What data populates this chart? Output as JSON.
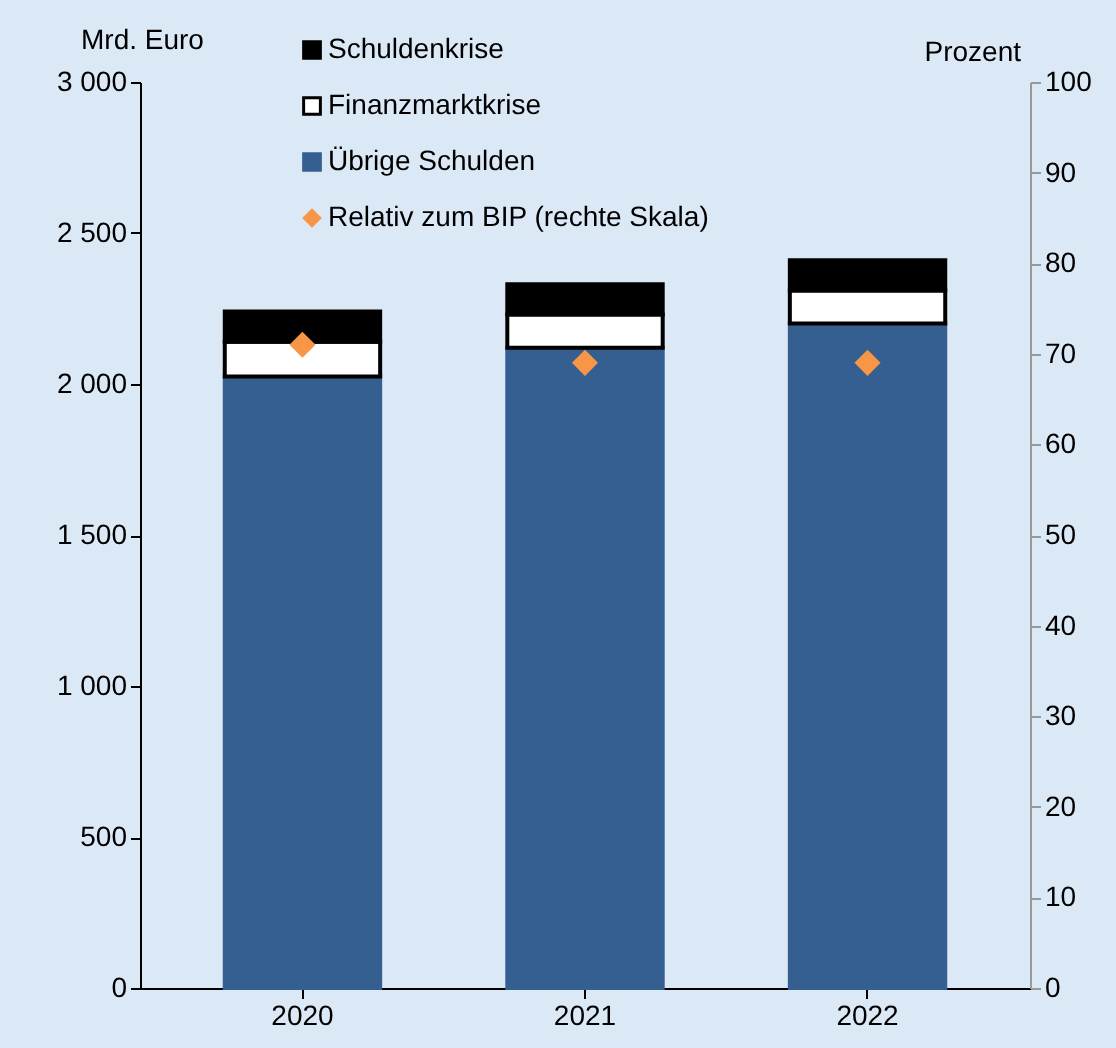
{
  "chart_data": {
    "type": "bar",
    "stacked": true,
    "xlabel": null,
    "ylabel": "Mrd. Euro",
    "y2label": "Prozent",
    "categories": [
      "2020",
      "2021",
      "2022"
    ],
    "series": [
      {
        "name": "Übrige Schulden",
        "color": "#355f91",
        "values": [
          2025,
          2120,
          2200
        ]
      },
      {
        "name": "Finanzmarktkrise",
        "color": "#ffffff",
        "values": [
          115,
          110,
          110
        ]
      },
      {
        "name": "Schuldenkrise",
        "color": "#000000",
        "values": [
          100,
          100,
          100
        ]
      },
      {
        "name": "Relativ zum BIP (rechte Skala)",
        "type": "scatter",
        "axis": "y2",
        "marker": "diamond",
        "color": "#f79646",
        "values": [
          71,
          69,
          69
        ]
      }
    ],
    "ylim": [
      0,
      3000
    ],
    "yticks": [
      0,
      {
        "value": 500,
        "label": "500"
      },
      {
        "value": 1000,
        "label": "1 000"
      },
      {
        "value": 1500,
        "label": "1 500"
      },
      {
        "value": 2000,
        "label": "2 000"
      },
      {
        "value": 2500,
        "label": "2 500"
      },
      {
        "value": 3000,
        "label": "3 000"
      }
    ],
    "y2lim": [
      0,
      100
    ],
    "y2ticks": [
      0,
      10,
      20,
      30,
      40,
      50,
      60,
      70,
      80,
      90,
      100
    ],
    "legend": "top",
    "grid": false
  }
}
